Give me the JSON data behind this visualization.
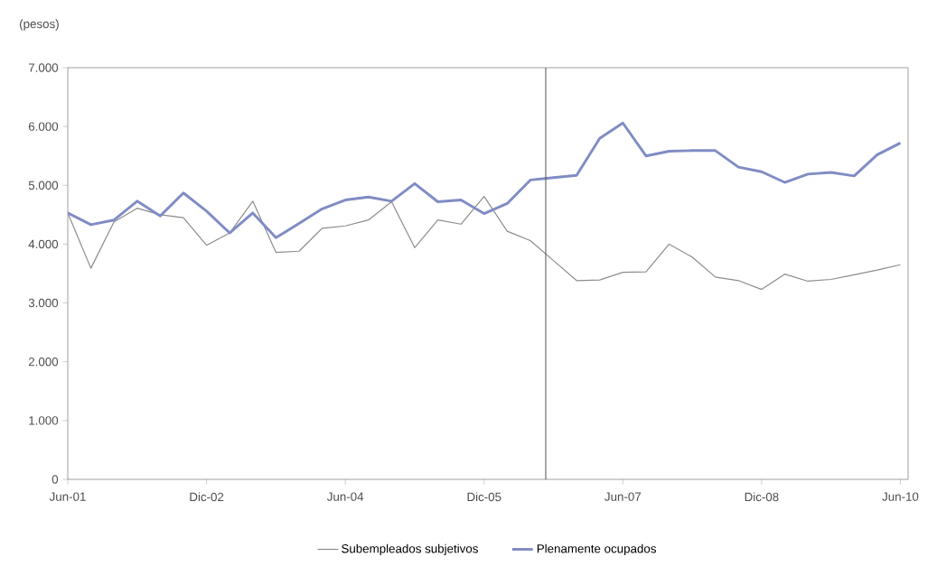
{
  "chart_data": {
    "type": "line",
    "ylabel": "(pesos)",
    "x": [
      "2001-06",
      "2001-09",
      "2001-12",
      "2002-03",
      "2002-06",
      "2002-09",
      "2002-12",
      "2003-03",
      "2003-06",
      "2003-09",
      "2003-12",
      "2004-03",
      "2004-06",
      "2004-09",
      "2004-12",
      "2005-03",
      "2005-06",
      "2005-09",
      "2005-12",
      "2006-03",
      "2006-06",
      "2006-09",
      "2006-12",
      "2007-03",
      "2007-06",
      "2007-09",
      "2007-12",
      "2008-03",
      "2008-06",
      "2008-09",
      "2008-12",
      "2009-03",
      "2009-06",
      "2009-09",
      "2009-12",
      "2010-03",
      "2010-06"
    ],
    "series": [
      {
        "name": "Subempleados subjetivos",
        "color": "#8c8c8c",
        "values": [
          4530,
          3590,
          4380,
          4610,
          4500,
          4450,
          3980,
          4190,
          4730,
          3860,
          3880,
          4270,
          4310,
          4410,
          4720,
          3940,
          4410,
          4340,
          4810,
          4220,
          4060,
          3720,
          3380,
          3390,
          3520,
          3530,
          4000,
          3780,
          3440,
          3380,
          3230,
          3490,
          3370,
          3400,
          3480,
          3560,
          3650
        ]
      },
      {
        "name": "Plenamente ocupados",
        "color": "#7f8cc4",
        "values": [
          4530,
          4330,
          4410,
          4730,
          4480,
          4870,
          4560,
          4190,
          4530,
          4110,
          4350,
          4600,
          4750,
          4800,
          4730,
          5030,
          4720,
          4750,
          4520,
          4690,
          5090,
          5130,
          5170,
          5800,
          6060,
          5500,
          5580,
          5590,
          5590,
          5310,
          5230,
          5050,
          5190,
          5220,
          5160,
          5520,
          5720
        ]
      }
    ],
    "xlim": [
      "2001-06",
      "2010-07"
    ],
    "ylim": [
      0,
      7000
    ],
    "xticks": [
      {
        "value": "2001-06",
        "label": "Jun-01"
      },
      {
        "value": "2002-12",
        "label": "Dic-02"
      },
      {
        "value": "2004-06",
        "label": "Jun-04"
      },
      {
        "value": "2005-12",
        "label": "Dic-05"
      },
      {
        "value": "2007-06",
        "label": "Jun-07"
      },
      {
        "value": "2008-12",
        "label": "Dic-08"
      },
      {
        "value": "2010-06",
        "label": "Jun-10"
      }
    ],
    "yticks": [
      0,
      {
        "value": 1000,
        "label": "1.000"
      },
      {
        "value": 2000,
        "label": "2.000"
      },
      {
        "value": 3000,
        "label": "3.000"
      },
      {
        "value": 4000,
        "label": "4.000"
      },
      {
        "value": 5000,
        "label": "5.000"
      },
      {
        "value": 6000,
        "label": "6.000"
      },
      {
        "value": 7000,
        "label": "7.000"
      }
    ],
    "ref_lines": [
      {
        "axis": "x",
        "value": "2006-08",
        "color": "#555555"
      }
    ],
    "legend": "bottom"
  }
}
